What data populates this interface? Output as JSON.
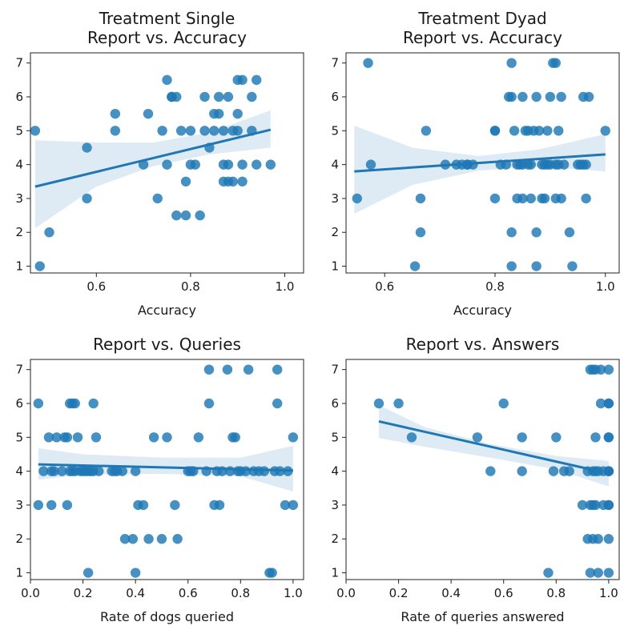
{
  "figure": {
    "accent_color": "#1f77b4"
  },
  "chart_data": [
    {
      "type": "scatter",
      "title": "Treatment Single\nReport vs. Accuracy",
      "xlabel": "Accuracy",
      "ylabel": "",
      "xlim": [
        0.46,
        1.04
      ],
      "ylim": [
        0.8,
        7.3
      ],
      "xticks": [
        0.6,
        0.8,
        1.0
      ],
      "xtick_labels": [
        "0.6",
        "0.8",
        "1.0"
      ],
      "yticks": [
        1,
        2,
        3,
        4,
        5,
        6,
        7
      ],
      "ytick_labels": [
        "1",
        "2",
        "3",
        "4",
        "5",
        "6",
        "7"
      ],
      "x": [
        0.47,
        0.48,
        0.5,
        0.58,
        0.58,
        0.64,
        0.64,
        0.7,
        0.71,
        0.73,
        0.74,
        0.75,
        0.75,
        0.76,
        0.76,
        0.77,
        0.77,
        0.78,
        0.79,
        0.79,
        0.8,
        0.8,
        0.81,
        0.82,
        0.83,
        0.83,
        0.84,
        0.85,
        0.85,
        0.86,
        0.86,
        0.87,
        0.87,
        0.87,
        0.88,
        0.88,
        0.88,
        0.89,
        0.89,
        0.9,
        0.9,
        0.9,
        0.91,
        0.91,
        0.91,
        0.93,
        0.93,
        0.94,
        0.94,
        0.97
      ],
      "y": [
        5,
        1,
        2,
        3,
        4.5,
        5.5,
        5,
        4,
        5.5,
        3,
        5,
        6.5,
        4,
        6,
        6,
        2.5,
        6,
        5,
        2.5,
        3.5,
        4,
        5,
        4,
        2.5,
        5,
        6,
        4.5,
        5,
        5.5,
        5.5,
        6,
        4,
        3.5,
        5,
        6,
        3.5,
        4,
        3.5,
        5,
        5,
        6.5,
        5.5,
        6.5,
        4,
        3.5,
        5,
        6,
        4,
        6.5,
        4
      ],
      "fit": {
        "x": [
          0.47,
          0.97
        ],
        "y": [
          3.35,
          5.03
        ]
      },
      "ci": {
        "x": [
          0.47,
          0.6,
          0.72,
          0.84,
          0.97
        ],
        "lower": [
          2.12,
          3.35,
          3.95,
          4.3,
          4.5
        ],
        "upper": [
          4.72,
          4.65,
          4.65,
          4.95,
          5.6
        ]
      }
    },
    {
      "type": "scatter",
      "title": "Treatment Dyad\nReport vs. Accuracy",
      "xlabel": "Accuracy",
      "ylabel": "",
      "xlim": [
        0.53,
        1.025
      ],
      "ylim": [
        0.8,
        7.3
      ],
      "xticks": [
        0.6,
        0.8,
        1.0
      ],
      "xtick_labels": [
        "0.6",
        "0.8",
        "1.0"
      ],
      "yticks": [
        1,
        2,
        3,
        4,
        5,
        6,
        7
      ],
      "ytick_labels": [
        "1",
        "2",
        "3",
        "4",
        "5",
        "6",
        "7"
      ],
      "x": [
        0.55,
        0.57,
        0.575,
        0.655,
        0.665,
        0.665,
        0.675,
        0.71,
        0.73,
        0.74,
        0.75,
        0.75,
        0.76,
        0.8,
        0.8,
        0.8,
        0.81,
        0.82,
        0.825,
        0.83,
        0.83,
        0.83,
        0.83,
        0.835,
        0.84,
        0.84,
        0.845,
        0.85,
        0.85,
        0.85,
        0.855,
        0.86,
        0.86,
        0.865,
        0.865,
        0.87,
        0.875,
        0.875,
        0.875,
        0.88,
        0.885,
        0.885,
        0.89,
        0.89,
        0.895,
        0.895,
        0.9,
        0.9,
        0.905,
        0.91,
        0.91,
        0.91,
        0.915,
        0.915,
        0.92,
        0.92,
        0.925,
        0.935,
        0.94,
        0.95,
        0.955,
        0.96,
        0.96,
        0.965,
        0.965,
        0.97,
        1.0
      ],
      "y": [
        3,
        7,
        4,
        1,
        3,
        2,
        5,
        4,
        4,
        4,
        4,
        4,
        4,
        3,
        5,
        5,
        4,
        4,
        6,
        7,
        2,
        1,
        6,
        5,
        3,
        4,
        4,
        6,
        3,
        4,
        5,
        5,
        4,
        3,
        4,
        5,
        2,
        1,
        6,
        5,
        3,
        4,
        4,
        3,
        5,
        4,
        6,
        4,
        7,
        7,
        4,
        3,
        5,
        4,
        6,
        3,
        4,
        2,
        1,
        4,
        4,
        6,
        4,
        3,
        4,
        6,
        5
      ],
      "fit": {
        "x": [
          0.545,
          1.0
        ],
        "y": [
          3.8,
          4.3
        ]
      },
      "ci": {
        "x": [
          0.545,
          0.65,
          0.77,
          0.88,
          1.0
        ],
        "lower": [
          2.55,
          3.4,
          3.82,
          3.95,
          3.8
        ],
        "upper": [
          5.15,
          4.5,
          4.25,
          4.45,
          4.9
        ]
      }
    },
    {
      "type": "scatter",
      "title": "Report vs. Queries",
      "xlabel": "Rate of dogs queried",
      "ylabel": "",
      "xlim": [
        0.0,
        1.04
      ],
      "ylim": [
        0.8,
        7.3
      ],
      "xticks": [
        0.0,
        0.2,
        0.4,
        0.6,
        0.8,
        1.0
      ],
      "xtick_labels": [
        "0.0",
        "0.2",
        "0.4",
        "0.6",
        "0.8",
        "1.0"
      ],
      "yticks": [
        1,
        2,
        3,
        4,
        5,
        6,
        7
      ],
      "ytick_labels": [
        "1",
        "2",
        "3",
        "4",
        "5",
        "6",
        "7"
      ],
      "x": [
        0.03,
        0.03,
        0.05,
        0.07,
        0.08,
        0.08,
        0.09,
        0.1,
        0.12,
        0.13,
        0.14,
        0.14,
        0.15,
        0.15,
        0.16,
        0.16,
        0.17,
        0.17,
        0.18,
        0.19,
        0.2,
        0.21,
        0.22,
        0.22,
        0.23,
        0.24,
        0.24,
        0.25,
        0.26,
        0.31,
        0.32,
        0.33,
        0.35,
        0.36,
        0.39,
        0.4,
        0.4,
        0.41,
        0.43,
        0.45,
        0.47,
        0.5,
        0.52,
        0.55,
        0.56,
        0.6,
        0.61,
        0.62,
        0.64,
        0.67,
        0.68,
        0.68,
        0.7,
        0.71,
        0.72,
        0.73,
        0.75,
        0.76,
        0.77,
        0.78,
        0.79,
        0.8,
        0.82,
        0.83,
        0.85,
        0.87,
        0.89,
        0.91,
        0.92,
        0.93,
        0.94,
        0.94,
        0.95,
        0.97,
        0.98,
        1.0,
        1.0
      ],
      "y": [
        6,
        3,
        4,
        5,
        4,
        3,
        4,
        5,
        4,
        5,
        5,
        3,
        4,
        6,
        4,
        6,
        6,
        4,
        5,
        4,
        4,
        4,
        4,
        1,
        4,
        6,
        4,
        5,
        4,
        4,
        4,
        4,
        4,
        2,
        2,
        4,
        1,
        3,
        3,
        2,
        5,
        2,
        5,
        3,
        2,
        4,
        4,
        4,
        5,
        4,
        6,
        7,
        3,
        4,
        3,
        4,
        7,
        4,
        5,
        5,
        4,
        4,
        4,
        7,
        4,
        4,
        4,
        1,
        1,
        4,
        7,
        6,
        4,
        3,
        4,
        5,
        3
      ],
      "fit": {
        "x": [
          0.03,
          1.0
        ],
        "y": [
          4.2,
          4.02
        ]
      },
      "ci": {
        "x": [
          0.03,
          0.2,
          0.5,
          0.8,
          1.0
        ],
        "lower": [
          3.75,
          3.9,
          3.92,
          3.85,
          3.4
        ],
        "upper": [
          4.68,
          4.5,
          4.4,
          4.4,
          4.75
        ]
      }
    },
    {
      "type": "scatter",
      "title": "Report vs. Answers",
      "xlabel": "Rate of queries answered",
      "ylabel": "",
      "xlim": [
        0.0,
        1.04
      ],
      "ylim": [
        0.8,
        7.3
      ],
      "xticks": [
        0.0,
        0.2,
        0.4,
        0.6,
        0.8,
        1.0
      ],
      "xtick_labels": [
        "0.0",
        "0.2",
        "0.4",
        "0.6",
        "0.8",
        "1.0"
      ],
      "yticks": [
        1,
        2,
        3,
        4,
        5,
        6,
        7
      ],
      "ytick_labels": [
        "1",
        "2",
        "3",
        "4",
        "5",
        "6",
        "7"
      ],
      "x": [
        0.125,
        0.2,
        0.25,
        0.5,
        0.55,
        0.6,
        0.67,
        0.67,
        0.77,
        0.79,
        0.8,
        0.83,
        0.85,
        0.9,
        0.92,
        0.92,
        0.93,
        0.93,
        0.93,
        0.94,
        0.94,
        0.94,
        0.94,
        0.95,
        0.95,
        0.95,
        0.95,
        0.96,
        0.96,
        0.96,
        0.97,
        0.97,
        0.98,
        0.98,
        1.0,
        1.0,
        1.0,
        1.0,
        1.0,
        1.0,
        1.0,
        1.0,
        1.0,
        1.0,
        1.0,
        1.0
      ],
      "y": [
        6,
        6,
        5,
        5,
        4,
        6,
        5,
        4,
        1,
        4,
        5,
        4,
        4,
        3,
        2,
        4,
        7,
        3,
        1,
        4,
        3,
        2,
        7,
        5,
        3,
        4,
        7,
        2,
        4,
        1,
        7,
        6,
        4,
        3,
        7,
        6,
        5,
        4,
        3,
        2,
        1,
        4,
        6,
        5,
        3,
        4
      ],
      "fit": {
        "x": [
          0.125,
          0.95
        ],
        "y": [
          5.47,
          4.02
        ]
      },
      "ci": {
        "x": [
          0.125,
          0.3,
          0.55,
          0.8,
          1.0
        ],
        "lower": [
          4.98,
          4.72,
          4.4,
          4.05,
          3.55
        ],
        "upper": [
          5.95,
          5.3,
          4.8,
          4.45,
          4.3
        ]
      }
    }
  ]
}
